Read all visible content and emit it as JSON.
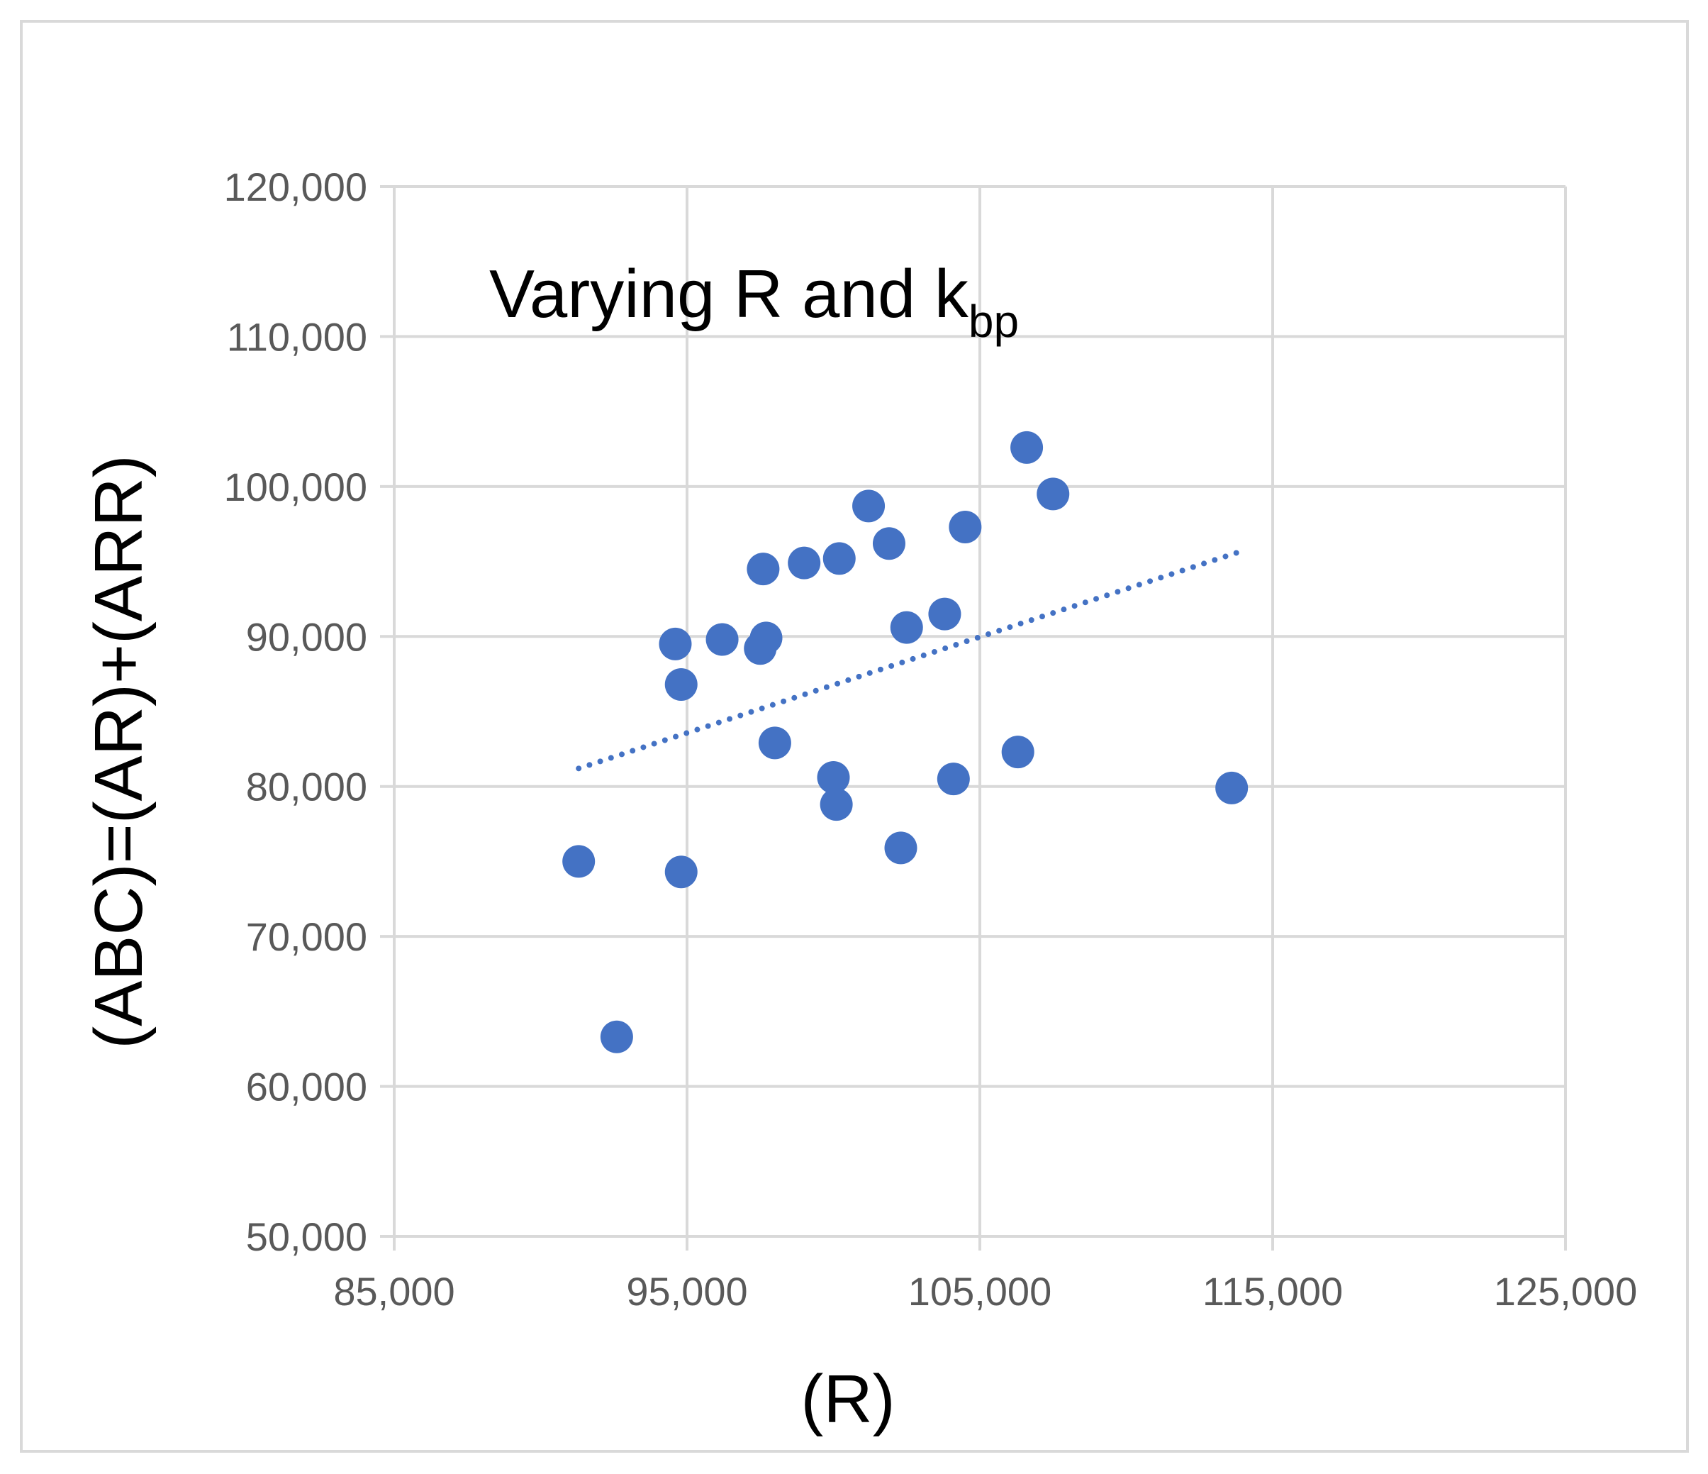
{
  "chart_data": {
    "type": "scatter",
    "title": "Varying R and k",
    "title_subscript": "bp",
    "xlabel": "(R)",
    "ylabel": "(ABC)=(AR)+(ARR)",
    "xlim": [
      85000,
      125000
    ],
    "ylim": [
      50000,
      120000
    ],
    "x_ticks": [
      85000,
      95000,
      105000,
      115000,
      125000
    ],
    "y_ticks": [
      50000,
      60000,
      70000,
      80000,
      90000,
      100000,
      110000,
      120000
    ],
    "x_tick_labels": [
      "85,000",
      "95,000",
      "105,000",
      "115,000",
      "125,000"
    ],
    "y_tick_labels": [
      "50,000",
      "60,000",
      "70,000",
      "80,000",
      "90,000",
      "100,000",
      "110,000",
      "120,000"
    ],
    "grid": true,
    "marker_color": "#4472C4",
    "trendline": {
      "style": "dotted",
      "color": "#4472C4",
      "x": [
        91300,
        113800
      ],
      "y": [
        81200,
        95600
      ]
    },
    "points": [
      {
        "x": 91300,
        "y": 75000
      },
      {
        "x": 92600,
        "y": 63300
      },
      {
        "x": 94600,
        "y": 89500
      },
      {
        "x": 94800,
        "y": 86800
      },
      {
        "x": 94800,
        "y": 74300
      },
      {
        "x": 96200,
        "y": 89800
      },
      {
        "x": 97600,
        "y": 94500
      },
      {
        "x": 97500,
        "y": 89200
      },
      {
        "x": 97700,
        "y": 89900
      },
      {
        "x": 98000,
        "y": 82900
      },
      {
        "x": 99000,
        "y": 94900
      },
      {
        "x": 100000,
        "y": 80600
      },
      {
        "x": 100100,
        "y": 78800
      },
      {
        "x": 100200,
        "y": 95200
      },
      {
        "x": 101200,
        "y": 98700
      },
      {
        "x": 101900,
        "y": 96200
      },
      {
        "x": 102300,
        "y": 75900
      },
      {
        "x": 102500,
        "y": 90600
      },
      {
        "x": 103800,
        "y": 91500
      },
      {
        "x": 104100,
        "y": 80500
      },
      {
        "x": 104500,
        "y": 97300
      },
      {
        "x": 106300,
        "y": 82300
      },
      {
        "x": 106600,
        "y": 102600
      },
      {
        "x": 107500,
        "y": 99500
      },
      {
        "x": 113600,
        "y": 79900
      }
    ]
  }
}
